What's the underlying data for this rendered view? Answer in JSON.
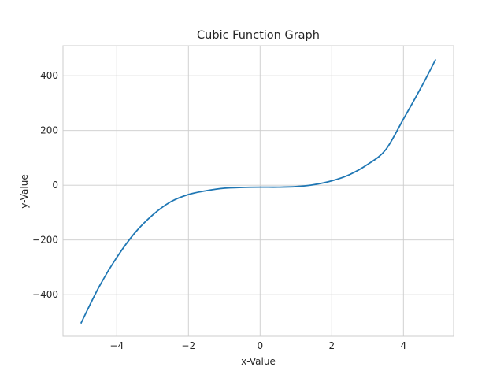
{
  "chart_data": {
    "type": "line",
    "title": "Cubic Function Graph",
    "xlabel": "x-Value",
    "ylabel": "y-Value",
    "xlim": [
      -5.5,
      5.4
    ],
    "ylim": [
      -552,
      510
    ],
    "xticks": [
      -4,
      -2,
      0,
      2,
      4
    ],
    "xtick_labels": [
      "−4",
      "−2",
      "0",
      "2",
      "4"
    ],
    "yticks": [
      -400,
      -200,
      0,
      200,
      400
    ],
    "ytick_labels": [
      "−400",
      "−200",
      "0",
      "200",
      "400"
    ],
    "grid": true,
    "series": [
      {
        "color": "#1f77b4",
        "x": [
          -5.0,
          -4.5,
          -4.0,
          -3.5,
          -3.0,
          -2.5,
          -2.0,
          -1.5,
          -1.0,
          -0.5,
          0.0,
          0.5,
          1.0,
          1.5,
          2.0,
          2.5,
          3.0,
          3.5,
          4.0,
          4.5,
          4.9
        ],
        "y": [
          -505,
          -373,
          -264,
          -175,
          -109,
          -61,
          -34,
          -20,
          -11,
          -8,
          -7,
          -7,
          -5,
          2,
          16,
          39,
          76,
          129,
          242,
          359,
          460
        ]
      }
    ]
  }
}
